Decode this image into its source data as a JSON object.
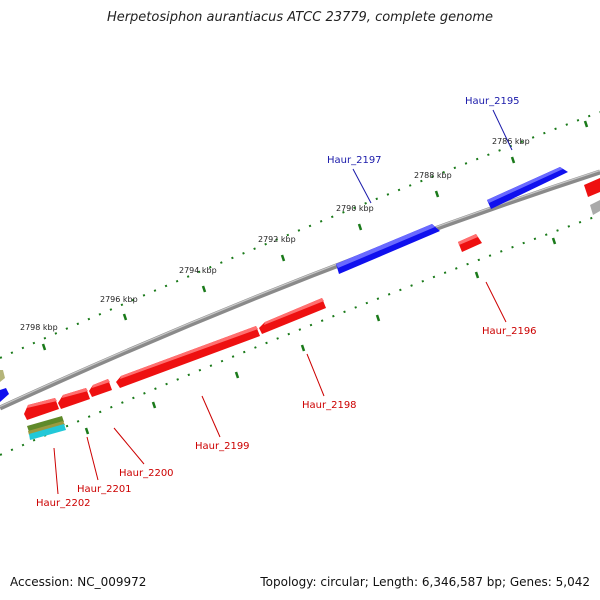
{
  "title": "Herpetosiphon aurantiacus ATCC 23779, complete genome",
  "accession": "Accession: NC_009972",
  "summary": "Topology: circular; Length: 6,346,587 bp; Genes: 5,042",
  "colors": {
    "forward": "#0000ee",
    "reverse": "#ee0000",
    "backbone": "#888888",
    "tick": "#117711",
    "label_forward": "#1a1aaa",
    "label_reverse": "#cc0000"
  },
  "scale_labels": [
    "2786 kbp",
    "2788 kbp",
    "2790 kbp",
    "2792 kbp",
    "2794 kbp",
    "2796 kbp",
    "2798 kbp"
  ],
  "genes": [
    {
      "name": "Haur_2195",
      "strand": "forward"
    },
    {
      "name": "Haur_2196",
      "strand": "reverse"
    },
    {
      "name": "Haur_2197",
      "strand": "forward"
    },
    {
      "name": "Haur_2198",
      "strand": "reverse"
    },
    {
      "name": "Haur_2199",
      "strand": "reverse"
    },
    {
      "name": "Haur_2200",
      "strand": "reverse"
    },
    {
      "name": "Haur_2201",
      "strand": "reverse"
    },
    {
      "name": "Haur_2202",
      "strand": "reverse"
    }
  ]
}
